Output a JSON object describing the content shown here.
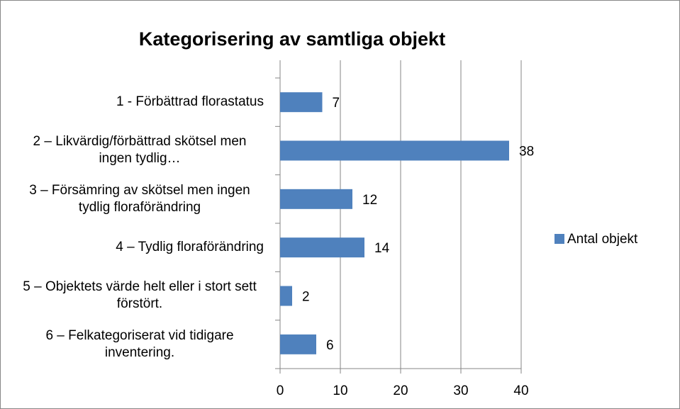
{
  "chart_data": {
    "type": "bar",
    "orientation": "horizontal",
    "title": "Kategorisering av samtliga objekt",
    "categories": [
      "1 - Förbättrad florastatus",
      "2 – Likvärdig/förbättrad skötsel men ingen tydlig…",
      "3 – Försämring av skötsel men ingen tydlig floraförändring",
      "4 – Tydlig floraförändring",
      "5 – Objektets värde helt eller i stort sett förstört.",
      "6 – Felkategoriserat vid tidigare inventering."
    ],
    "series": [
      {
        "name": "Antal objekt",
        "color": "#4f81bd",
        "values": [
          7,
          38,
          12,
          14,
          2,
          6
        ]
      }
    ],
    "xlim": [
      0,
      40
    ],
    "xticks": [
      0,
      10,
      20,
      30,
      40
    ],
    "grid": true,
    "legend": "right"
  }
}
